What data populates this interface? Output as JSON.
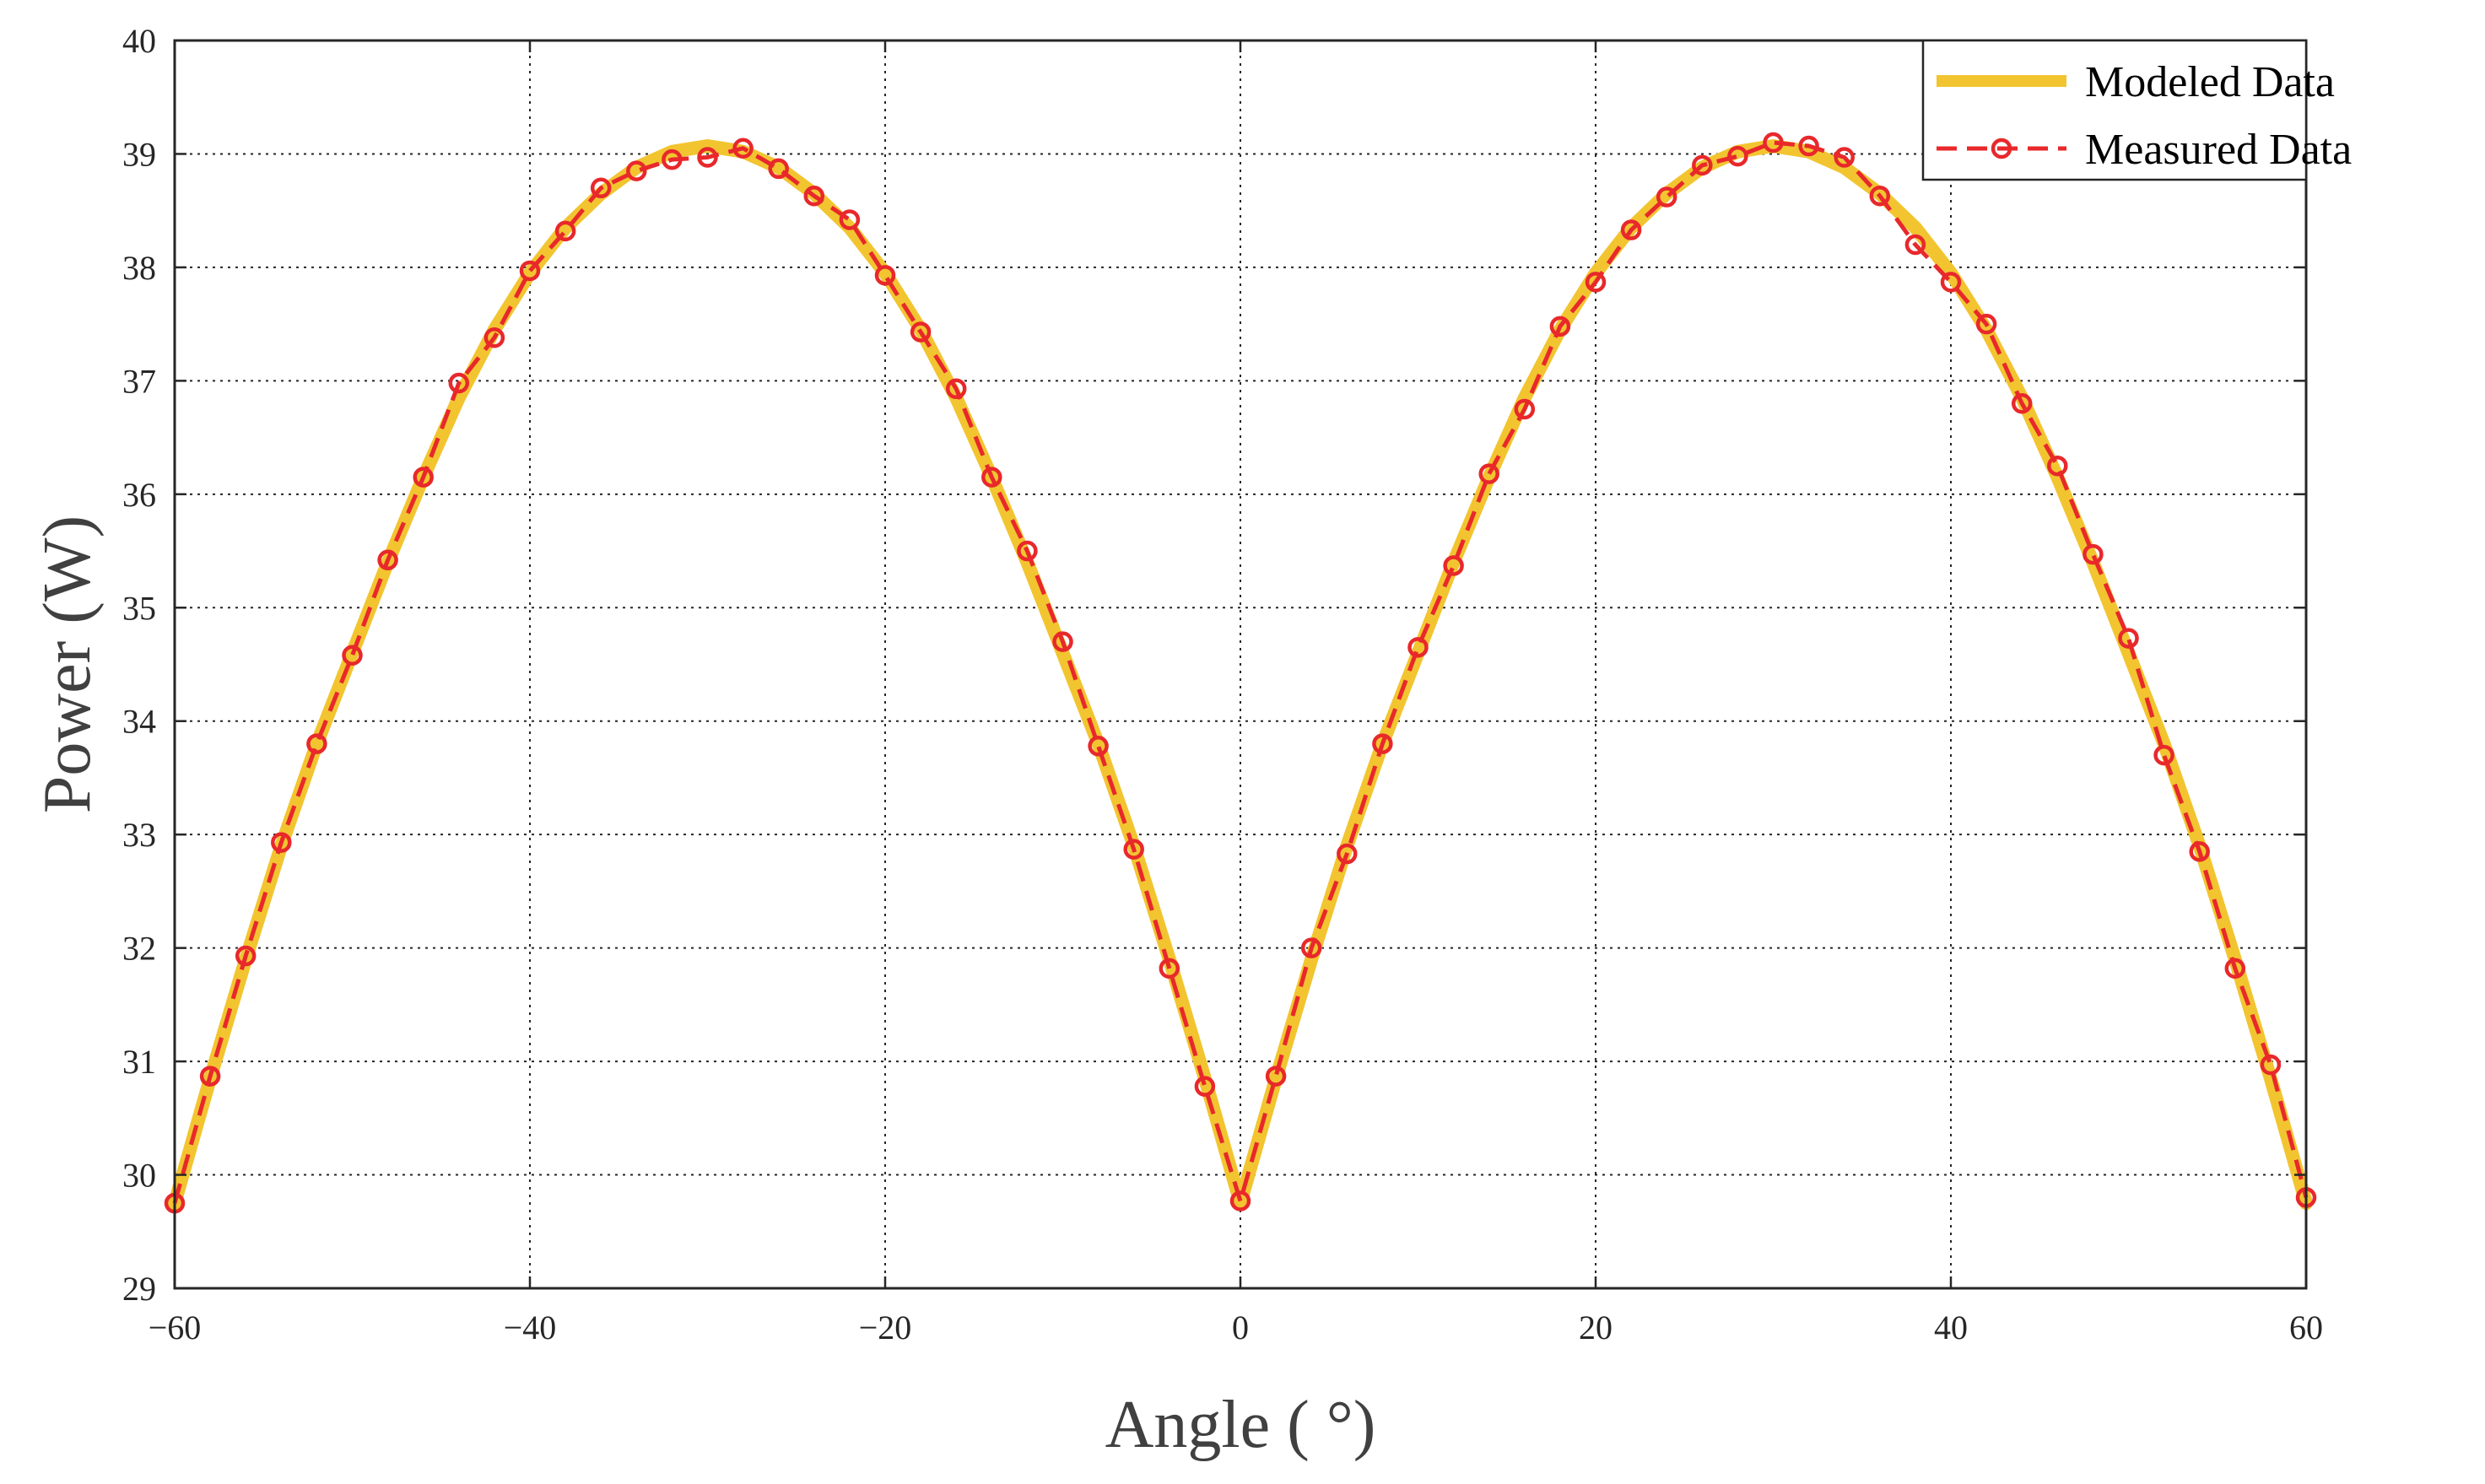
{
  "chart_data": {
    "type": "line",
    "xlabel": "Angle ( °)",
    "ylabel": "Power (W)",
    "xlim": [
      -60,
      60
    ],
    "ylim": [
      29,
      40
    ],
    "xticks": [
      -60,
      -40,
      -20,
      0,
      20,
      40,
      60
    ],
    "xtick_labels": [
      "−60",
      "−40",
      "−20",
      "0",
      "20",
      "40",
      "60"
    ],
    "yticks": [
      29,
      30,
      31,
      32,
      33,
      34,
      35,
      36,
      37,
      38,
      39,
      40
    ],
    "ytick_labels": [
      "29",
      "30",
      "31",
      "32",
      "33",
      "34",
      "35",
      "36",
      "37",
      "38",
      "39",
      "40"
    ],
    "grid": true,
    "legend_position": "top-right",
    "series": [
      {
        "name": "Modeled Data",
        "style": "solid",
        "color": "#F2C530",
        "x": [
          -60,
          -58,
          -56,
          -54,
          -52,
          -50,
          -48,
          -46,
          -44,
          -42,
          -40,
          -38,
          -36,
          -34,
          -32,
          -30,
          -28,
          -26,
          -24,
          -22,
          -20,
          -18,
          -16,
          -14,
          -12,
          -10,
          -8,
          -6,
          -4,
          -2,
          0,
          2,
          4,
          6,
          8,
          10,
          12,
          14,
          16,
          18,
          20,
          22,
          24,
          26,
          28,
          30,
          32,
          34,
          36,
          38,
          40,
          42,
          44,
          46,
          48,
          50,
          52,
          54,
          56,
          58,
          60
        ],
        "y": [
          29.75,
          30.85,
          31.9,
          32.9,
          33.8,
          34.6,
          35.4,
          36.15,
          36.85,
          37.45,
          37.95,
          38.35,
          38.65,
          38.88,
          39.02,
          39.07,
          39.02,
          38.88,
          38.65,
          38.35,
          37.95,
          37.45,
          36.85,
          36.15,
          35.4,
          34.6,
          33.8,
          32.9,
          31.9,
          30.85,
          29.75,
          30.85,
          31.9,
          32.9,
          33.8,
          34.6,
          35.4,
          36.15,
          36.85,
          37.45,
          37.95,
          38.35,
          38.65,
          38.88,
          39.02,
          39.07,
          39.02,
          38.88,
          38.65,
          38.35,
          37.95,
          37.45,
          36.85,
          36.15,
          35.4,
          34.6,
          33.8,
          32.9,
          31.9,
          30.85,
          29.75
        ]
      },
      {
        "name": "Measured Data",
        "style": "dashed-circle",
        "color": "#E8282B",
        "x": [
          -60,
          -58,
          -56,
          -54,
          -52,
          -50,
          -48,
          -46,
          -44,
          -42,
          -40,
          -38,
          -36,
          -34,
          -32,
          -30,
          -28,
          -26,
          -24,
          -22,
          -20,
          -18,
          -16,
          -14,
          -12,
          -10,
          -8,
          -6,
          -4,
          -2,
          0,
          2,
          4,
          6,
          8,
          10,
          12,
          14,
          16,
          18,
          20,
          22,
          24,
          26,
          28,
          30,
          32,
          34,
          36,
          38,
          40,
          42,
          44,
          46,
          48,
          50,
          52,
          54,
          56,
          58,
          60
        ],
        "y": [
          29.75,
          30.87,
          31.93,
          32.93,
          33.8,
          34.58,
          35.42,
          36.15,
          36.98,
          37.38,
          37.97,
          38.32,
          38.7,
          38.85,
          38.95,
          38.97,
          39.05,
          38.87,
          38.63,
          38.42,
          37.93,
          37.43,
          36.93,
          36.15,
          35.5,
          34.7,
          33.78,
          32.87,
          31.82,
          30.78,
          29.77,
          30.87,
          32.0,
          32.83,
          33.8,
          34.65,
          35.37,
          36.18,
          36.75,
          37.48,
          37.87,
          38.33,
          38.62,
          38.9,
          38.98,
          39.1,
          39.07,
          38.97,
          38.63,
          38.2,
          37.87,
          37.5,
          36.8,
          36.25,
          35.47,
          34.73,
          33.7,
          32.85,
          31.82,
          30.97,
          29.8
        ]
      }
    ]
  }
}
